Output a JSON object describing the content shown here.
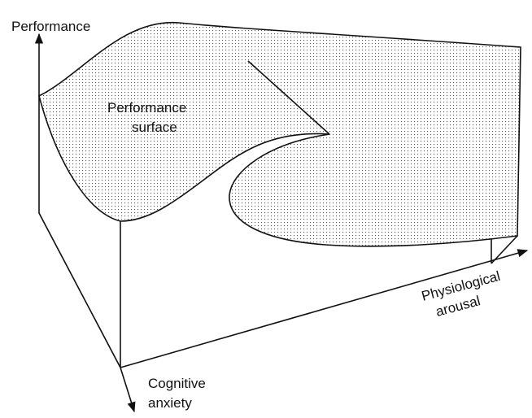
{
  "axes": {
    "vertical": "Performance",
    "physiological": [
      "Physiological",
      "arousal"
    ],
    "cognitive": [
      "Cognitive",
      "anxiety"
    ]
  },
  "surface_label": [
    "Performance",
    "surface"
  ]
}
